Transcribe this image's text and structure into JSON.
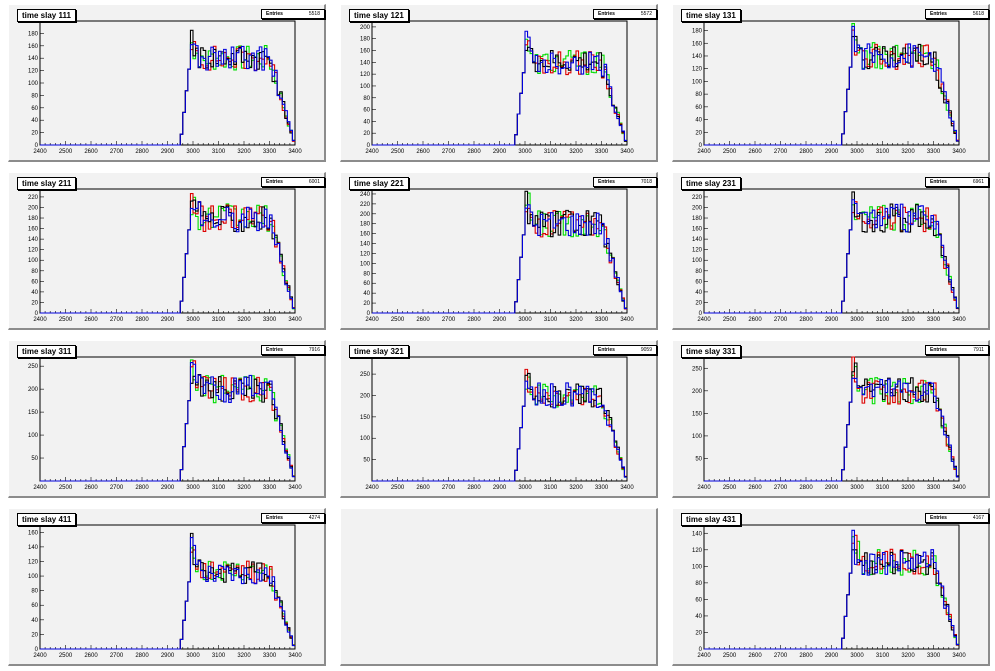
{
  "chart_data": [
    {
      "type": "line",
      "title": "time slay 111",
      "stats_label": "Entries",
      "entries": "5518",
      "xlim": [
        2400,
        3400
      ],
      "xticks": [
        "2400",
        "2500",
        "2600",
        "2700",
        "2800",
        "2900",
        "3000",
        "3100",
        "3200",
        "3300",
        "3400"
      ],
      "ylim": [
        0,
        200
      ],
      "yticks": [
        "0",
        "20",
        "40",
        "60",
        "80",
        "100",
        "120",
        "140",
        "160",
        "180",
        "200"
      ],
      "rise_start": 2950,
      "level": 140,
      "peak": 175,
      "fall_start": 3300,
      "fall_end": 3400
    },
    {
      "type": "line",
      "title": "time slay 121",
      "stats_label": "Entries",
      "entries": "5572",
      "xlim": [
        2400,
        3400
      ],
      "xticks": [
        "2400",
        "2500",
        "2600",
        "2700",
        "2800",
        "2900",
        "3000",
        "3100",
        "3200",
        "3300",
        "3400"
      ],
      "ylim": [
        0,
        210
      ],
      "yticks": [
        "0",
        "20",
        "40",
        "60",
        "80",
        "100",
        "120",
        "140",
        "160",
        "180",
        "200"
      ],
      "rise_start": 2960,
      "level": 140,
      "peak": 195,
      "fall_start": 3300,
      "fall_end": 3400
    },
    {
      "type": "line",
      "title": "time slay 131",
      "stats_label": "Entries",
      "entries": "5618",
      "xlim": [
        2400,
        3400
      ],
      "xticks": [
        "2400",
        "2500",
        "2600",
        "2700",
        "2800",
        "2900",
        "3000",
        "3100",
        "3200",
        "3300",
        "3400"
      ],
      "ylim": [
        0,
        195
      ],
      "yticks": [
        "0",
        "20",
        "40",
        "60",
        "80",
        "100",
        "120",
        "140",
        "160",
        "180"
      ],
      "rise_start": 2940,
      "level": 140,
      "peak": 185,
      "fall_start": 3300,
      "fall_end": 3400
    },
    {
      "type": "line",
      "title": "time slay 211",
      "stats_label": "Entries",
      "entries": "6001",
      "xlim": [
        2400,
        3400
      ],
      "xticks": [
        "2400",
        "2500",
        "2600",
        "2700",
        "2800",
        "2900",
        "3000",
        "3100",
        "3200",
        "3300",
        "3400"
      ],
      "ylim": [
        0,
        235
      ],
      "yticks": [
        "0",
        "20",
        "40",
        "60",
        "80",
        "100",
        "120",
        "140",
        "160",
        "180",
        "200",
        "220"
      ],
      "rise_start": 2950,
      "level": 180,
      "peak": 225,
      "fall_start": 3300,
      "fall_end": 3400
    },
    {
      "type": "line",
      "title": "time slay 221",
      "stats_label": "Entries",
      "entries": "7018",
      "xlim": [
        2400,
        3400
      ],
      "xticks": [
        "2400",
        "2500",
        "2600",
        "2700",
        "2800",
        "2900",
        "3000",
        "3100",
        "3200",
        "3300",
        "3400"
      ],
      "ylim": [
        0,
        250
      ],
      "yticks": [
        "0",
        "20",
        "40",
        "60",
        "80",
        "100",
        "120",
        "140",
        "160",
        "180",
        "200",
        "220",
        "240"
      ],
      "rise_start": 2960,
      "level": 180,
      "peak": 240,
      "fall_start": 3300,
      "fall_end": 3400
    },
    {
      "type": "line",
      "title": "time slay 231",
      "stats_label": "Entries",
      "entries": "6961",
      "xlim": [
        2400,
        3400
      ],
      "xticks": [
        "2400",
        "2500",
        "2600",
        "2700",
        "2800",
        "2900",
        "3000",
        "3100",
        "3200",
        "3300",
        "3400"
      ],
      "ylim": [
        0,
        235
      ],
      "yticks": [
        "0",
        "20",
        "40",
        "60",
        "80",
        "100",
        "120",
        "140",
        "160",
        "180",
        "200",
        "220"
      ],
      "rise_start": 2940,
      "level": 180,
      "peak": 215,
      "fall_start": 3300,
      "fall_end": 3400
    },
    {
      "type": "line",
      "title": "time slay 311",
      "stats_label": "Entries",
      "entries": "7916",
      "xlim": [
        2400,
        3400
      ],
      "xticks": [
        "2400",
        "2500",
        "2600",
        "2700",
        "2800",
        "2900",
        "3000",
        "3100",
        "3200",
        "3300",
        "3400"
      ],
      "ylim": [
        0,
        270
      ],
      "yticks": [
        "50",
        "100",
        "150",
        "200",
        "250"
      ],
      "rise_start": 2950,
      "level": 200,
      "peak": 260,
      "fall_start": 3300,
      "fall_end": 3400
    },
    {
      "type": "line",
      "title": "time slay 321",
      "stats_label": "Entries",
      "entries": "9059",
      "xlim": [
        2400,
        3400
      ],
      "xticks": [
        "2400",
        "2500",
        "2600",
        "2700",
        "2800",
        "2900",
        "3000",
        "3100",
        "3200",
        "3300",
        "3400"
      ],
      "ylim": [
        0,
        290
      ],
      "yticks": [
        "50",
        "100",
        "150",
        "200",
        "250"
      ],
      "rise_start": 2960,
      "level": 200,
      "peak": 275,
      "fall_start": 3300,
      "fall_end": 3400
    },
    {
      "type": "line",
      "title": "time slay 331",
      "stats_label": "Entries",
      "entries": "7911",
      "xlim": [
        2400,
        3400
      ],
      "xticks": [
        "2400",
        "2500",
        "2600",
        "2700",
        "2800",
        "2900",
        "3000",
        "3100",
        "3200",
        "3300",
        "3400"
      ],
      "ylim": [
        0,
        275
      ],
      "yticks": [
        "50",
        "100",
        "150",
        "200",
        "250"
      ],
      "rise_start": 2940,
      "level": 200,
      "peak": 265,
      "fall_start": 3300,
      "fall_end": 3400
    },
    {
      "type": "line",
      "title": "time slay 411",
      "stats_label": "Entries",
      "entries": "4274",
      "xlim": [
        2400,
        3400
      ],
      "xticks": [
        "2400",
        "2500",
        "2600",
        "2700",
        "2800",
        "2900",
        "3000",
        "3100",
        "3200",
        "3300",
        "3400"
      ],
      "ylim": [
        0,
        170
      ],
      "yticks": [
        "0",
        "20",
        "40",
        "60",
        "80",
        "100",
        "120",
        "140",
        "160"
      ],
      "rise_start": 2950,
      "level": 105,
      "peak": 165,
      "fall_start": 3300,
      "fall_end": 3400
    },
    null,
    {
      "type": "line",
      "title": "time slay 431",
      "stats_label": "Entries",
      "entries": "4167",
      "xlim": [
        2400,
        3400
      ],
      "xticks": [
        "2400",
        "2500",
        "2600",
        "2700",
        "2800",
        "2900",
        "3000",
        "3100",
        "3200",
        "3300",
        "3400"
      ],
      "ylim": [
        0,
        150
      ],
      "yticks": [
        "0",
        "20",
        "40",
        "60",
        "80",
        "100",
        "120",
        "140"
      ],
      "rise_start": 2940,
      "level": 105,
      "peak": 135,
      "fall_start": 3300,
      "fall_end": 3400
    }
  ],
  "series_colors": [
    "#00dd00",
    "#dd0000",
    "#000000",
    "#0000dd"
  ]
}
